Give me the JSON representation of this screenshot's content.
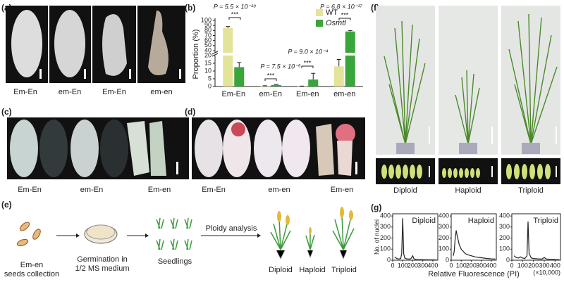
{
  "panels": {
    "a": {
      "label": "(a)",
      "captions": [
        "Em-En",
        "em-En",
        "Em-En",
        "em-en"
      ]
    },
    "c": {
      "label": "(c)",
      "captions": [
        "Em-En",
        "em-En",
        "Em-en"
      ]
    },
    "d": {
      "label": "(d)",
      "captions": [
        "Em-En",
        "em-en",
        "Em-en"
      ]
    },
    "e": {
      "label": "(e)",
      "steps": [
        [
          "Em-en",
          "seeds collection"
        ],
        [
          "Germination in",
          "1/2 MS medium"
        ],
        [
          "Seedlings"
        ]
      ],
      "arrow_label": "Ploidy analysis",
      "plants": [
        "Diploid",
        "Haploid",
        "Triploid"
      ]
    },
    "f": {
      "label": "(f)",
      "captions": [
        "Diploid",
        "Haploid",
        "Triploid"
      ]
    },
    "g": {
      "label": "(g)"
    }
  },
  "chart_data": [
    {
      "type": "bar",
      "panel": "(b)",
      "y_label": "Proportion (%)",
      "categories": [
        "Em-En",
        "em-En",
        "Em-en",
        "em-en"
      ],
      "series": [
        {
          "name": "WT",
          "color": "#e3e39a",
          "values": [
            85,
            0.3,
            0.2,
            13
          ],
          "errors": [
            3,
            0.2,
            0.1,
            4.5
          ]
        },
        {
          "name": "Osmtl",
          "color": "#3aa53a",
          "values": [
            12.5,
            1,
            4.5,
            78
          ],
          "errors": [
            3,
            0.3,
            4,
            2
          ]
        }
      ],
      "ylim": [
        0,
        100
      ],
      "ybreak": [
        20,
        40
      ],
      "yticks": [
        0,
        5,
        10,
        15,
        20,
        40,
        50,
        60,
        70,
        80,
        90,
        100
      ],
      "annotations": [
        "P = 5.5 × 10⁻¹⁸",
        "***",
        "P = 7.5 × 10⁻⁵",
        "***",
        "P = 9.0 × 10⁻⁴",
        "***",
        "P = 6.8 × 10⁻¹⁷",
        "***"
      ]
    },
    {
      "type": "line",
      "title": "Diploid",
      "y_label": "No. of nuclei",
      "color": "#222222",
      "x": [
        20,
        40,
        60,
        80,
        90,
        100,
        110,
        120,
        140,
        160,
        180,
        200,
        210,
        220,
        240,
        280,
        320,
        360,
        400,
        440
      ],
      "values": [
        30,
        15,
        10,
        15,
        60,
        380,
        60,
        20,
        12,
        10,
        12,
        40,
        15,
        8,
        6,
        5,
        4,
        3,
        3,
        2
      ],
      "xlim": [
        0,
        450
      ],
      "ylim": [
        0,
        420
      ],
      "xticks": [
        0,
        100,
        200,
        300,
        400
      ],
      "yticks": [
        0,
        100,
        200,
        300,
        400
      ]
    },
    {
      "type": "line",
      "title": "Haploid",
      "x_label": "Relative Fluorescence (PI)",
      "color": "#222222",
      "x": [
        20,
        30,
        40,
        50,
        60,
        70,
        80,
        100,
        120,
        140,
        160,
        200,
        240,
        280,
        320,
        360,
        400,
        440
      ],
      "values": [
        40,
        80,
        200,
        270,
        220,
        180,
        140,
        100,
        80,
        60,
        50,
        40,
        30,
        25,
        20,
        15,
        12,
        10
      ],
      "xlim": [
        0,
        450
      ],
      "ylim": [
        0,
        420
      ],
      "xticks": [
        0,
        100,
        200,
        300,
        400
      ],
      "yticks": [
        0,
        100,
        200,
        300,
        400
      ]
    },
    {
      "type": "line",
      "title": "Triploid",
      "x_unit": "(×10,000)",
      "color": "#222222",
      "x": [
        20,
        40,
        60,
        80,
        100,
        120,
        140,
        150,
        160,
        180,
        200,
        240,
        280,
        300,
        320,
        360,
        400,
        440
      ],
      "values": [
        40,
        25,
        20,
        30,
        20,
        15,
        40,
        350,
        60,
        20,
        15,
        12,
        10,
        25,
        10,
        8,
        6,
        5
      ],
      "xlim": [
        0,
        450
      ],
      "ylim": [
        0,
        420
      ],
      "xticks": [
        0,
        100,
        200,
        300,
        400
      ],
      "yticks": [
        0,
        100,
        200,
        300,
        400
      ]
    }
  ]
}
